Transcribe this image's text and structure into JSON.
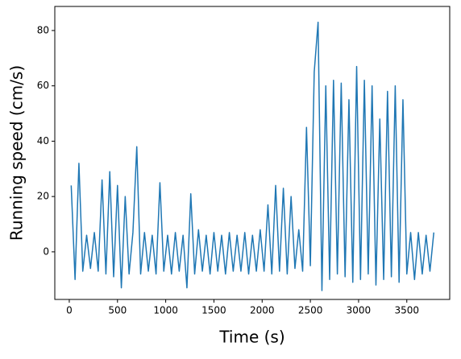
{
  "chart_data": {
    "type": "line",
    "xlabel": "Time (s)",
    "ylabel": "Running speed (cm/s)",
    "x": [
      20,
      60,
      100,
      140,
      180,
      220,
      260,
      300,
      340,
      380,
      420,
      460,
      500,
      540,
      580,
      620,
      660,
      700,
      740,
      780,
      820,
      860,
      900,
      940,
      980,
      1020,
      1060,
      1100,
      1140,
      1180,
      1220,
      1260,
      1300,
      1340,
      1380,
      1420,
      1460,
      1500,
      1540,
      1580,
      1620,
      1660,
      1700,
      1740,
      1780,
      1820,
      1860,
      1900,
      1940,
      1980,
      2020,
      2060,
      2100,
      2140,
      2180,
      2220,
      2260,
      2300,
      2340,
      2380,
      2420,
      2460,
      2500,
      2540,
      2580,
      2620,
      2660,
      2700,
      2740,
      2780,
      2820,
      2860,
      2900,
      2940,
      2980,
      3020,
      3060,
      3100,
      3140,
      3180,
      3220,
      3260,
      3300,
      3340,
      3380,
      3420,
      3460,
      3500,
      3540,
      3580,
      3620,
      3660,
      3700,
      3740,
      3780
    ],
    "series": [
      {
        "name": "Running speed",
        "color": "#1f77b4",
        "values": [
          24,
          -10,
          32,
          -7,
          6,
          -6,
          7,
          -7,
          26,
          -8,
          29,
          -9,
          24,
          -13,
          20,
          -8,
          7,
          38,
          -8,
          7,
          -7,
          6,
          -8,
          25,
          -7,
          6,
          -8,
          7,
          -7,
          6,
          -13,
          21,
          -8,
          8,
          -7,
          6,
          -8,
          7,
          -7,
          6,
          -8,
          7,
          -7,
          6,
          -7,
          7,
          -8,
          6,
          -7,
          8,
          -7,
          17,
          -8,
          24,
          -7,
          23,
          -8,
          20,
          -6,
          8,
          -7,
          45,
          -5,
          65,
          83,
          -14,
          60,
          -10,
          62,
          -8,
          61,
          -9,
          55,
          -11,
          67,
          -10,
          62,
          -8,
          60,
          -12,
          48,
          -10,
          58,
          -9,
          60,
          -11,
          55,
          -8,
          7,
          -10,
          7,
          -8,
          6,
          -7,
          7
        ]
      }
    ],
    "xlim": [
      -150,
      3945
    ],
    "ylim": [
      -17.2,
      88.7
    ],
    "xticks": [
      0,
      500,
      1000,
      1500,
      2000,
      2500,
      3000,
      3500
    ],
    "yticks": [
      0,
      20,
      40,
      60,
      80
    ]
  }
}
